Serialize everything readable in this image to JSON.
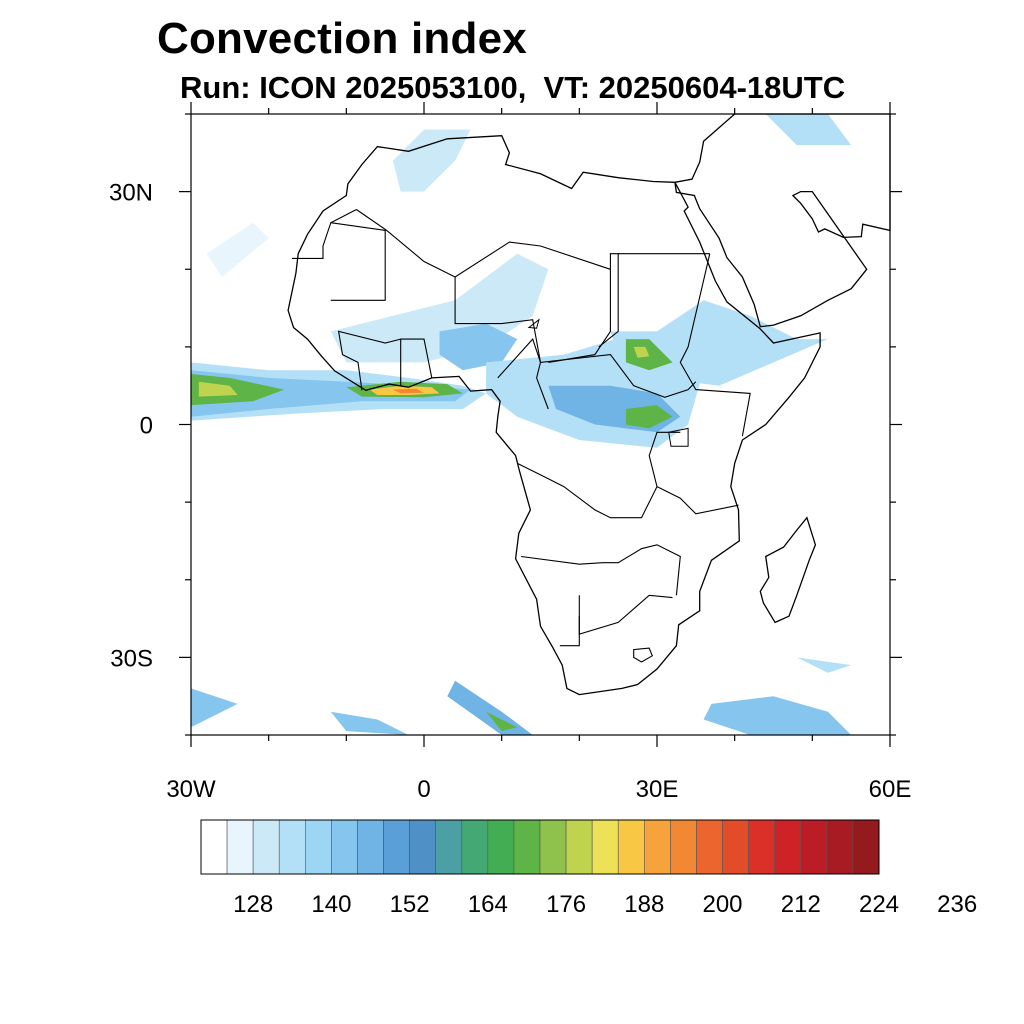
{
  "title": "Convection index",
  "subtitle": "Run: ICON 2025053100,  VT: 20250604-18UTC",
  "map": {
    "projection": "cylindrical-equidistant",
    "lon_range": [
      -30,
      60
    ],
    "lat_range": [
      -40,
      40
    ],
    "x_ticks": [
      {
        "lon": -30,
        "label": "30W"
      },
      {
        "lon": 0,
        "label": "0"
      },
      {
        "lon": 30,
        "label": "30E"
      },
      {
        "lon": 60,
        "label": "60E"
      }
    ],
    "y_ticks": [
      {
        "lat": 30,
        "label": "30N"
      },
      {
        "lat": 0,
        "label": "0"
      },
      {
        "lat": -30,
        "label": "30S"
      }
    ],
    "minor_tick_step_deg": 10
  },
  "colorbar": {
    "colors": [
      "#ffffff",
      "#e8f5fc",
      "#cce9f8",
      "#b4e0f7",
      "#9dd6f5",
      "#86c6ee",
      "#70b4e6",
      "#5a9fd8",
      "#4f90c6",
      "#4d9fa6",
      "#44a874",
      "#43ad54",
      "#5fb448",
      "#8fc24c",
      "#c0d34e",
      "#ece157",
      "#f8c844",
      "#f6a33b",
      "#f28734",
      "#ec652e",
      "#e34c29",
      "#db3027",
      "#cf2227",
      "#bb1c25",
      "#a91b22",
      "#941a1e"
    ],
    "labels": [
      "128",
      "140",
      "152",
      "164",
      "176",
      "188",
      "200",
      "212",
      "224",
      "236"
    ]
  }
}
